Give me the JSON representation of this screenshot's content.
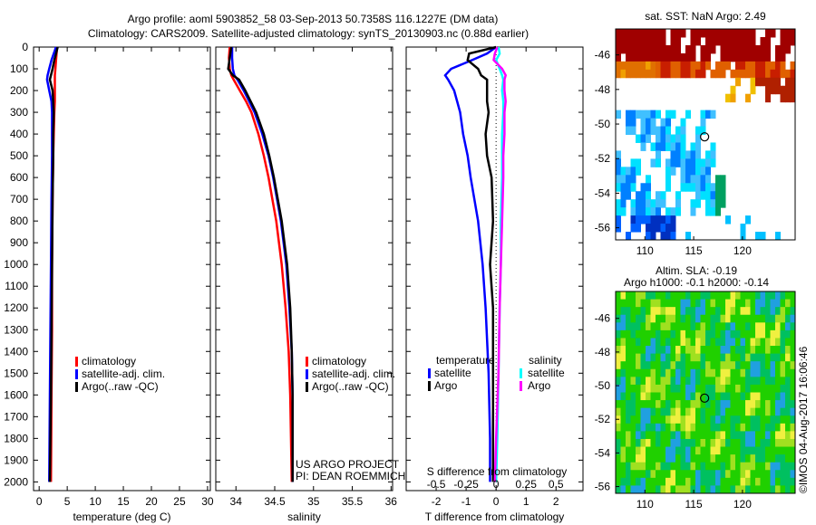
{
  "title": {
    "line1": "Argo profile: aoml 5903852_58 03-Sep-2013 50.7358S 116.1227E (DM data)",
    "line2": "Climatology: CARS2009. Satellite-adjusted climatology: synTS_20130903.nc (0.88d earlier)"
  },
  "credit": "©IMOS 04-Aug-2017 16:06:46",
  "project": {
    "line1": "US ARGO PROJECT",
    "line2": "PI: DEAN ROEMMICH"
  },
  "colors": {
    "climatology": "#ff0000",
    "satellite": "#0000ff",
    "argo": "#000000",
    "sal_satellite": "#00ffff",
    "sal_argo": "#ff00ff"
  },
  "chart_data": [
    {
      "type": "line",
      "id": "temperature",
      "xlabel": "temperature (deg C)",
      "xlim": [
        -1,
        30.5
      ],
      "ylim": [
        2040,
        0
      ],
      "xticks": [
        "0",
        "5",
        "10",
        "15",
        "20",
        "25",
        "30"
      ],
      "yticks": [
        "0",
        "100",
        "200",
        "300",
        "400",
        "500",
        "600",
        "700",
        "800",
        "900",
        "1000",
        "1100",
        "1200",
        "1300",
        "1400",
        "1500",
        "1600",
        "1700",
        "1800",
        "1900",
        "2000"
      ],
      "legend": [
        "climatology",
        "satellite-adj. clim.",
        "Argo(..raw -QC)"
      ],
      "depth": [
        0,
        30,
        60,
        100,
        130,
        150,
        200,
        250,
        300,
        400,
        500,
        700,
        1000,
        1300,
        1600,
        2000
      ],
      "series": [
        {
          "name": "climatology",
          "values": [
            3.2,
            3.1,
            3.0,
            2.9,
            2.8,
            2.8,
            2.8,
            2.8,
            2.7,
            2.6,
            2.5,
            2.4,
            2.3,
            2.3,
            2.2,
            2.1
          ]
        },
        {
          "name": "satellite-adj. clim.",
          "values": [
            3.0,
            2.6,
            2.2,
            1.8,
            1.5,
            1.4,
            1.8,
            2.2,
            2.3,
            2.3,
            2.3,
            2.2,
            2.1,
            2.0,
            1.9,
            1.8
          ]
        },
        {
          "name": "Argo(..raw -QC)",
          "values": [
            3.3,
            3.0,
            2.7,
            2.4,
            2.1,
            1.9,
            2.4,
            2.5,
            2.6,
            2.5,
            2.5,
            2.4,
            2.3,
            2.2,
            2.1,
            1.9
          ]
        }
      ]
    },
    {
      "type": "line",
      "id": "salinity",
      "xlabel": "salinity",
      "xlim": [
        33.74,
        36.02
      ],
      "ylim": [
        2040,
        0
      ],
      "xticks": [
        "34",
        "34.5",
        "35",
        "35.5",
        "36"
      ],
      "legend": [
        "climatology",
        "satellite-adj. clim.",
        "Argo(..raw -QC)"
      ],
      "depth": [
        0,
        50,
        100,
        130,
        150,
        200,
        250,
        300,
        400,
        500,
        600,
        700,
        800,
        1000,
        1200,
        1400,
        1600,
        2000
      ],
      "series": [
        {
          "name": "climatology",
          "values": [
            33.92,
            33.91,
            33.92,
            33.94,
            33.97,
            34.05,
            34.13,
            34.2,
            34.29,
            34.36,
            34.42,
            34.47,
            34.52,
            34.59,
            34.64,
            34.68,
            34.7,
            34.72
          ]
        },
        {
          "name": "satellite-adj. clim.",
          "values": [
            33.95,
            33.95,
            33.96,
            33.98,
            34.02,
            34.1,
            34.17,
            34.24,
            34.34,
            34.42,
            34.48,
            34.53,
            34.58,
            34.65,
            34.69,
            34.72,
            34.73,
            34.73
          ]
        },
        {
          "name": "Argo(..raw -QC)",
          "values": [
            33.94,
            33.92,
            33.9,
            33.96,
            34.04,
            34.12,
            34.19,
            34.26,
            34.36,
            34.43,
            34.49,
            34.54,
            34.59,
            34.66,
            34.7,
            34.72,
            34.73,
            34.73
          ]
        }
      ]
    },
    {
      "type": "line",
      "id": "difference",
      "xlabel": "T difference from climatology",
      "xlabel2": "S difference from climatology",
      "xlim": [
        -3,
        2.9
      ],
      "xticks": [
        "-2",
        "-1",
        "0",
        "1",
        "2"
      ],
      "sticks": [
        "-0.5",
        "-0.25",
        "0",
        "0.25",
        "0.5"
      ],
      "slim_scale": 0.25,
      "legend_t_title": "temperature",
      "legend_s_title": "salinity",
      "legend": [
        "satellite",
        "Argo",
        "satellite",
        "Argo"
      ],
      "depth": [
        0,
        30,
        60,
        100,
        130,
        150,
        200,
        250,
        300,
        400,
        500,
        600,
        800,
        1000,
        1200,
        1500,
        1800,
        2000
      ],
      "series": [
        {
          "name": "T satellite",
          "values": [
            0.0,
            -0.3,
            -0.8,
            -1.5,
            -1.7,
            -1.6,
            -1.4,
            -1.3,
            -1.2,
            -1.1,
            -0.95,
            -0.85,
            -0.6,
            -0.45,
            -0.35,
            -0.25,
            -0.2,
            -0.2
          ]
        },
        {
          "name": "T Argo",
          "values": [
            0.0,
            -0.9,
            -0.95,
            -0.6,
            -0.5,
            -0.3,
            -0.3,
            -0.3,
            -0.25,
            -0.35,
            -0.3,
            -0.15,
            -0.1,
            -0.2,
            -0.1,
            -0.1,
            -0.1,
            -0.1
          ]
        },
        {
          "name": "S satellite",
          "values": [
            0.02,
            0.03,
            0.0,
            0.03,
            0.05,
            0.06,
            0.05,
            0.06,
            0.06,
            0.05,
            0.05,
            0.05,
            0.04,
            0.04,
            0.03,
            0.02,
            0.01,
            0.0
          ]
        },
        {
          "name": "S Argo",
          "values": [
            0.01,
            -0.01,
            -0.02,
            0.05,
            0.08,
            0.07,
            0.07,
            0.08,
            0.07,
            0.07,
            0.06,
            0.06,
            0.05,
            0.04,
            0.03,
            0.02,
            0.0,
            -0.01
          ]
        }
      ]
    },
    {
      "type": "heatmap",
      "id": "sst-map",
      "title": "sat. SST: NaN Argo: 2.49",
      "xlim": [
        107,
        125.4
      ],
      "ylim": [
        -56.7,
        -44.5
      ],
      "xticks": [
        "110",
        "115",
        "120"
      ],
      "yticks": [
        "-46",
        "-48",
        "-50",
        "-52",
        "-54",
        "-56"
      ],
      "argo_position": [
        116.12,
        -50.74
      ]
    },
    {
      "type": "heatmap",
      "id": "sla-map",
      "title": "Altim. SLA: -0.19",
      "subtitle": "Argo h1000: -0.1 h2000: -0.14",
      "xlim": [
        107,
        125.4
      ],
      "ylim": [
        -56.4,
        -44.4
      ],
      "xticks": [
        "110",
        "115",
        "120"
      ],
      "yticks": [
        "-46",
        "-48",
        "-50",
        "-52",
        "-54",
        "-56"
      ],
      "argo_position": [
        116.12,
        -50.74
      ]
    }
  ]
}
